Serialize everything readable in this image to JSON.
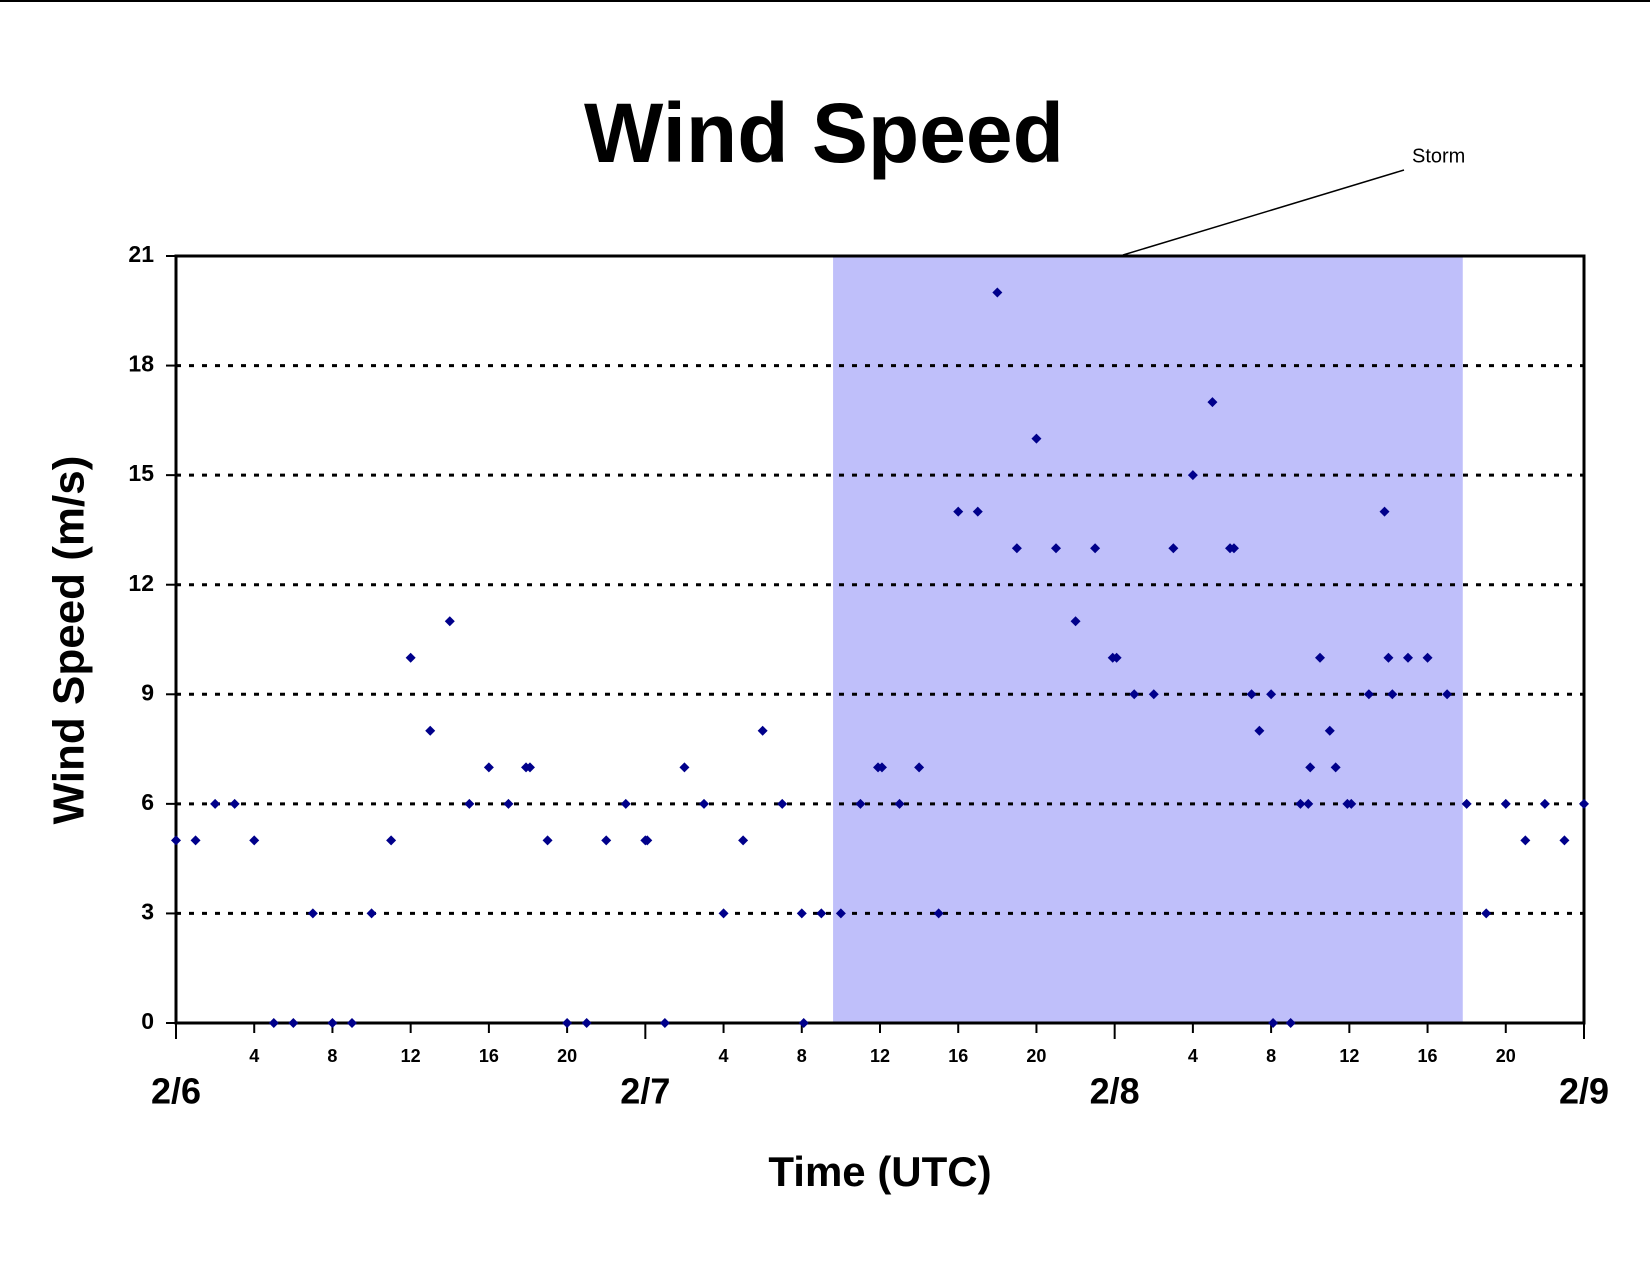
{
  "chart_data": {
    "type": "scatter",
    "title": "Wind Speed",
    "x_label": "Time (UTC)",
    "y_label": "Wind Speed (m/s)",
    "xlim": [
      0,
      72
    ],
    "ylim": [
      0,
      21
    ],
    "yticks": [
      0,
      3,
      6,
      9,
      12,
      15,
      18,
      21
    ],
    "xticks": [
      4,
      8,
      12,
      16,
      20,
      {
        "value": 28,
        "label": "4"
      },
      {
        "value": 32,
        "label": "8"
      },
      {
        "value": 36,
        "label": "12"
      },
      {
        "value": 40,
        "label": "16"
      },
      {
        "value": 44,
        "label": "20"
      },
      {
        "value": 52,
        "label": "4"
      },
      {
        "value": 56,
        "label": "8"
      },
      {
        "value": 60,
        "label": "12"
      },
      {
        "value": 64,
        "label": "16"
      },
      {
        "value": 68,
        "label": "20"
      }
    ],
    "date_ticks": [
      {
        "value": 0,
        "label": "2/6"
      },
      {
        "value": 24,
        "label": "2/7"
      },
      {
        "value": 48,
        "label": "2/8"
      },
      {
        "value": 72,
        "label": "2/9"
      }
    ],
    "grid": true,
    "shade": {
      "label": "Storm",
      "x": [
        33.6,
        65.8
      ],
      "color": "#bfbffa"
    },
    "series": [
      {
        "name": "Wind Speed",
        "color": "#00008b",
        "x": [
          0,
          1,
          2,
          3,
          4,
          5,
          6,
          7,
          8,
          9,
          10,
          11,
          12,
          13,
          14,
          15,
          16,
          17,
          17.9,
          18.1,
          19,
          20,
          21,
          22,
          23,
          24,
          24.1,
          25,
          26,
          27,
          28,
          29,
          30,
          31,
          32,
          32.1,
          33,
          34,
          35,
          35.9,
          36.1,
          37,
          38,
          39,
          40,
          41,
          42,
          43,
          44,
          45,
          46,
          47,
          47.9,
          48.1,
          49,
          50,
          51,
          52,
          53,
          53.9,
          54.1,
          55,
          55.4,
          56,
          56.1,
          57,
          57.5,
          57.9,
          58,
          58.5,
          59,
          59.3,
          59.9,
          60.1,
          61,
          61.8,
          62,
          62.2,
          63,
          64,
          65,
          66,
          67,
          68,
          69,
          70,
          71,
          72
        ],
        "values": [
          5,
          5,
          6,
          6,
          5,
          0,
          0,
          3,
          0,
          0,
          3,
          5,
          10,
          8,
          11,
          6,
          7,
          6,
          7,
          7,
          5,
          0,
          0,
          5,
          6,
          5,
          5,
          0,
          7,
          6,
          3,
          5,
          8,
          6,
          3,
          0,
          3,
          3,
          6,
          7,
          7,
          6,
          7,
          3,
          14,
          14,
          20,
          13,
          16,
          13,
          11,
          13,
          10,
          10,
          9,
          9,
          13,
          15,
          17,
          13,
          13,
          9,
          8,
          9,
          0,
          0,
          6,
          6,
          7,
          10,
          8,
          7,
          6,
          6,
          9,
          14,
          10,
          9,
          10,
          10,
          9,
          6,
          3,
          6,
          5,
          6,
          5,
          6
        ]
      }
    ]
  }
}
